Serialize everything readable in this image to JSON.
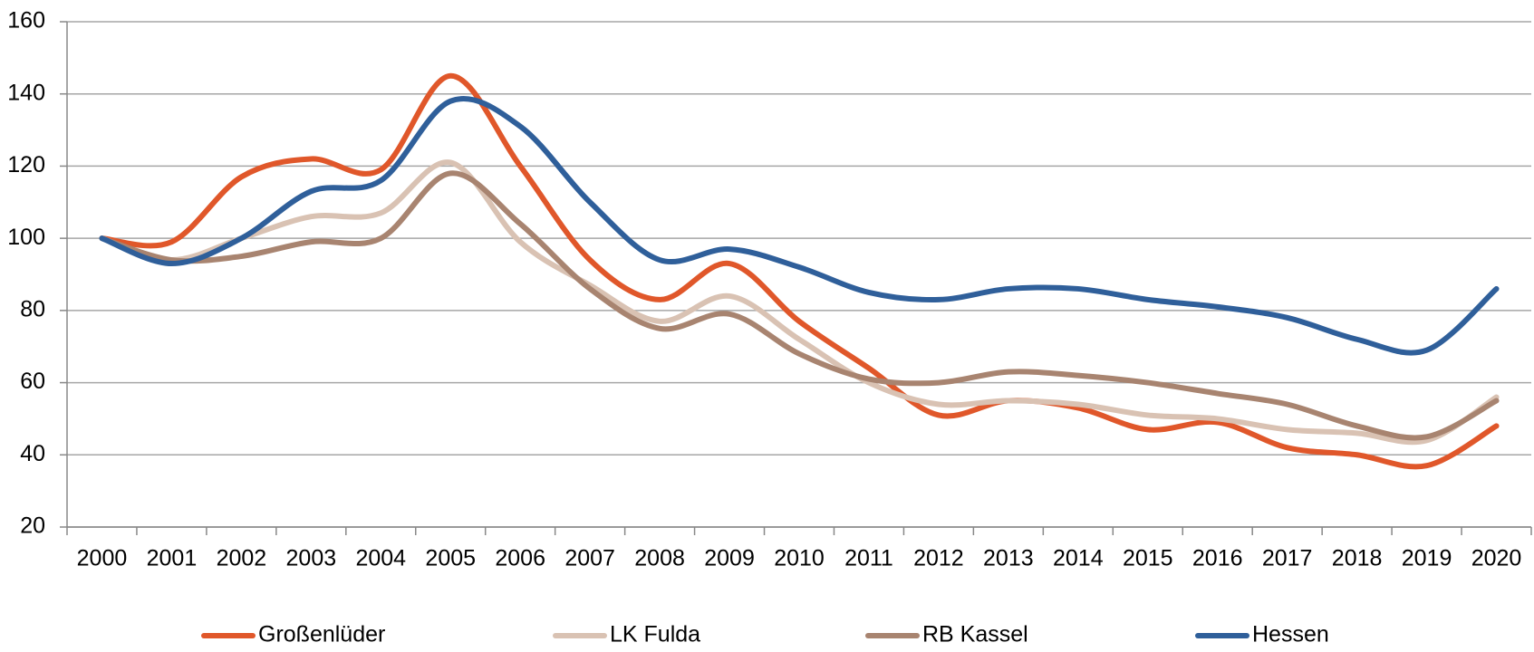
{
  "chart_data": {
    "type": "line",
    "categories": [
      "2000",
      "2001",
      "2002",
      "2003",
      "2004",
      "2005",
      "2006",
      "2007",
      "2008",
      "2009",
      "2010",
      "2011",
      "2012",
      "2013",
      "2014",
      "2015",
      "2016",
      "2017",
      "2018",
      "2019",
      "2020"
    ],
    "series": [
      {
        "name": "Großenlüder",
        "color": "#e0572a",
        "values": [
          100,
          99,
          117,
          122,
          119,
          145,
          120,
          94,
          83,
          93,
          77,
          64,
          51,
          55,
          53,
          47,
          49,
          42,
          40,
          37,
          48
        ]
      },
      {
        "name": "LK Fulda",
        "color": "#d9c2b3",
        "values": [
          100,
          94,
          100,
          106,
          107,
          121,
          99,
          87,
          77,
          84,
          72,
          60,
          54,
          55,
          54,
          51,
          50,
          47,
          46,
          44,
          56
        ]
      },
      {
        "name": "RB Kassel",
        "color": "#a88470",
        "values": [
          100,
          94,
          95,
          99,
          100,
          118,
          104,
          86,
          75,
          79,
          68,
          61,
          60,
          63,
          62,
          60,
          57,
          54,
          48,
          45,
          55
        ]
      },
      {
        "name": "Hessen",
        "color": "#2f5f9a",
        "values": [
          100,
          93,
          100,
          113,
          116,
          138,
          131,
          110,
          94,
          97,
          92,
          85,
          83,
          86,
          86,
          83,
          81,
          78,
          72,
          69,
          86
        ]
      }
    ],
    "ylim": [
      20,
      160
    ],
    "yticks": [
      20,
      40,
      60,
      80,
      100,
      120,
      140,
      160
    ],
    "grid": true,
    "legend": "bottom"
  }
}
